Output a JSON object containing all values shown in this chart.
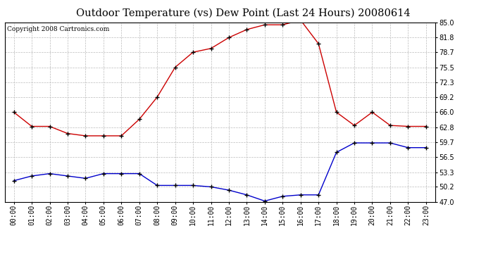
{
  "title": "Outdoor Temperature (vs) Dew Point (Last 24 Hours) 20080614",
  "copyright_text": "Copyright 2008 Cartronics.com",
  "hours": [
    "00:00",
    "01:00",
    "02:00",
    "03:00",
    "04:00",
    "05:00",
    "06:00",
    "07:00",
    "08:00",
    "09:00",
    "10:00",
    "11:00",
    "12:00",
    "13:00",
    "14:00",
    "15:00",
    "16:00",
    "17:00",
    "18:00",
    "19:00",
    "20:00",
    "21:00",
    "22:00",
    "23:00"
  ],
  "temp": [
    66.0,
    63.0,
    63.0,
    61.5,
    61.0,
    61.0,
    61.0,
    64.5,
    69.2,
    75.5,
    78.7,
    79.5,
    81.8,
    83.5,
    84.5,
    84.5,
    85.5,
    80.5,
    66.0,
    63.2,
    66.0,
    63.2,
    63.0,
    63.0
  ],
  "dewpoint": [
    51.5,
    52.5,
    53.0,
    52.5,
    52.0,
    53.0,
    53.0,
    53.0,
    50.5,
    50.5,
    50.5,
    50.2,
    49.5,
    48.5,
    47.2,
    48.2,
    48.5,
    48.5,
    57.5,
    59.5,
    59.5,
    59.5,
    58.5,
    58.5
  ],
  "ylim": [
    47.0,
    85.0
  ],
  "yticks": [
    47.0,
    50.2,
    53.3,
    56.5,
    59.7,
    62.8,
    66.0,
    69.2,
    72.3,
    75.5,
    78.7,
    81.8,
    85.0
  ],
  "temp_color": "#cc0000",
  "dewpoint_color": "#0000cc",
  "grid_color": "#bbbbbb",
  "bg_color": "#ffffff",
  "plot_bg_color": "#ffffff",
  "title_fontsize": 10.5,
  "copyright_fontsize": 6.5,
  "tick_fontsize": 7
}
